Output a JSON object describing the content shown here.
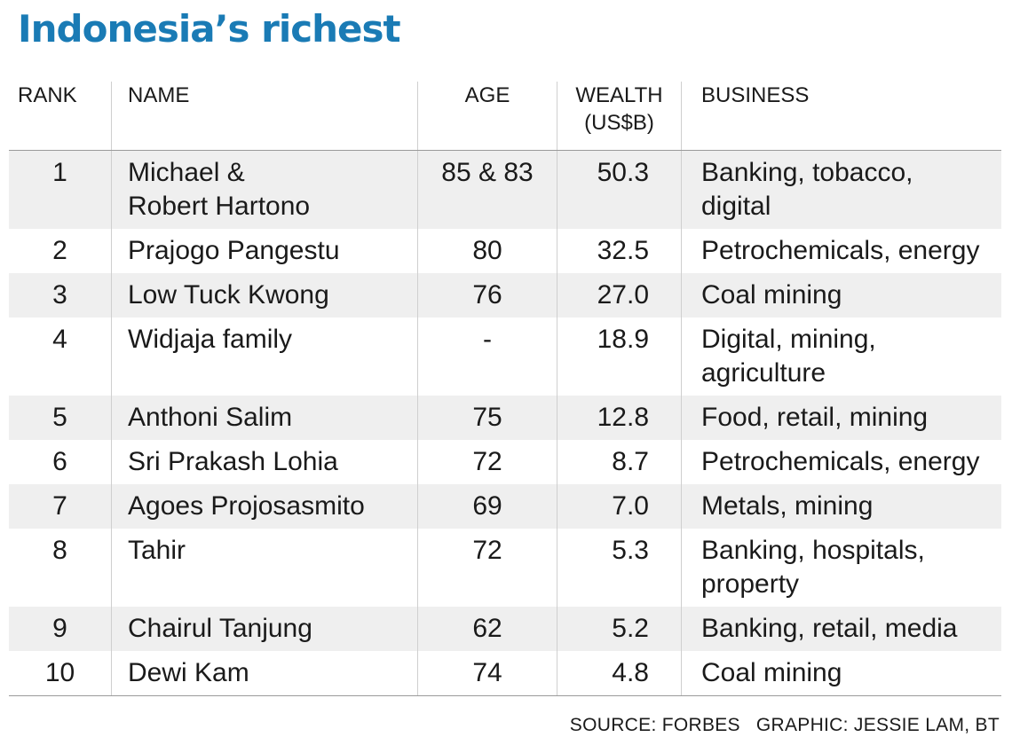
{
  "title": "Indonesia’s richest",
  "chart_data": {
    "type": "table",
    "title": "Indonesia’s richest",
    "columns": [
      "RANK",
      "NAME",
      "AGE",
      "WEALTH\n(US$B)",
      "BUSINESS"
    ],
    "column_lines": {
      "wealth": [
        "WEALTH",
        "(US$B)"
      ]
    },
    "rows": [
      {
        "rank": "1",
        "name": [
          "Michael &",
          "Robert Hartono"
        ],
        "age": "85 & 83",
        "wealth": "50.3",
        "business": [
          "Banking, tobacco,",
          "digital"
        ]
      },
      {
        "rank": "2",
        "name": [
          "Prajogo Pangestu"
        ],
        "age": "80",
        "wealth": "32.5",
        "business": [
          "Petrochemicals, energy"
        ]
      },
      {
        "rank": "3",
        "name": [
          "Low Tuck Kwong"
        ],
        "age": "76",
        "wealth": "27.0",
        "business": [
          "Coal mining"
        ]
      },
      {
        "rank": "4",
        "name": [
          "Widjaja family"
        ],
        "age": "-",
        "wealth": "18.9",
        "business": [
          "Digital, mining,",
          "agriculture"
        ]
      },
      {
        "rank": "5",
        "name": [
          "Anthoni Salim"
        ],
        "age": "75",
        "wealth": "12.8",
        "business": [
          "Food, retail, mining"
        ]
      },
      {
        "rank": "6",
        "name": [
          "Sri Prakash Lohia"
        ],
        "age": "72",
        "wealth": "8.7",
        "business": [
          "Petrochemicals, energy"
        ]
      },
      {
        "rank": "7",
        "name": [
          "Agoes Projosasmito"
        ],
        "age": "69",
        "wealth": "7.0",
        "business": [
          "Metals, mining"
        ]
      },
      {
        "rank": "8",
        "name": [
          "Tahir"
        ],
        "age": "72",
        "wealth": "5.3",
        "business": [
          "Banking, hospitals,",
          "property"
        ]
      },
      {
        "rank": "9",
        "name": [
          "Chairul Tanjung"
        ],
        "age": "62",
        "wealth": "5.2",
        "business": [
          "Banking, retail, media"
        ]
      },
      {
        "rank": "10",
        "name": [
          "Dewi Kam"
        ],
        "age": "74",
        "wealth": "4.8",
        "business": [
          "Coal mining"
        ]
      }
    ]
  },
  "footer": {
    "source": "SOURCE: FORBES",
    "graphic": "GRAPHIC: JESSIE LAM, BT"
  },
  "colors": {
    "title": "#1a7bb5",
    "stripe": "#efefef",
    "text": "#1a1a1a"
  }
}
